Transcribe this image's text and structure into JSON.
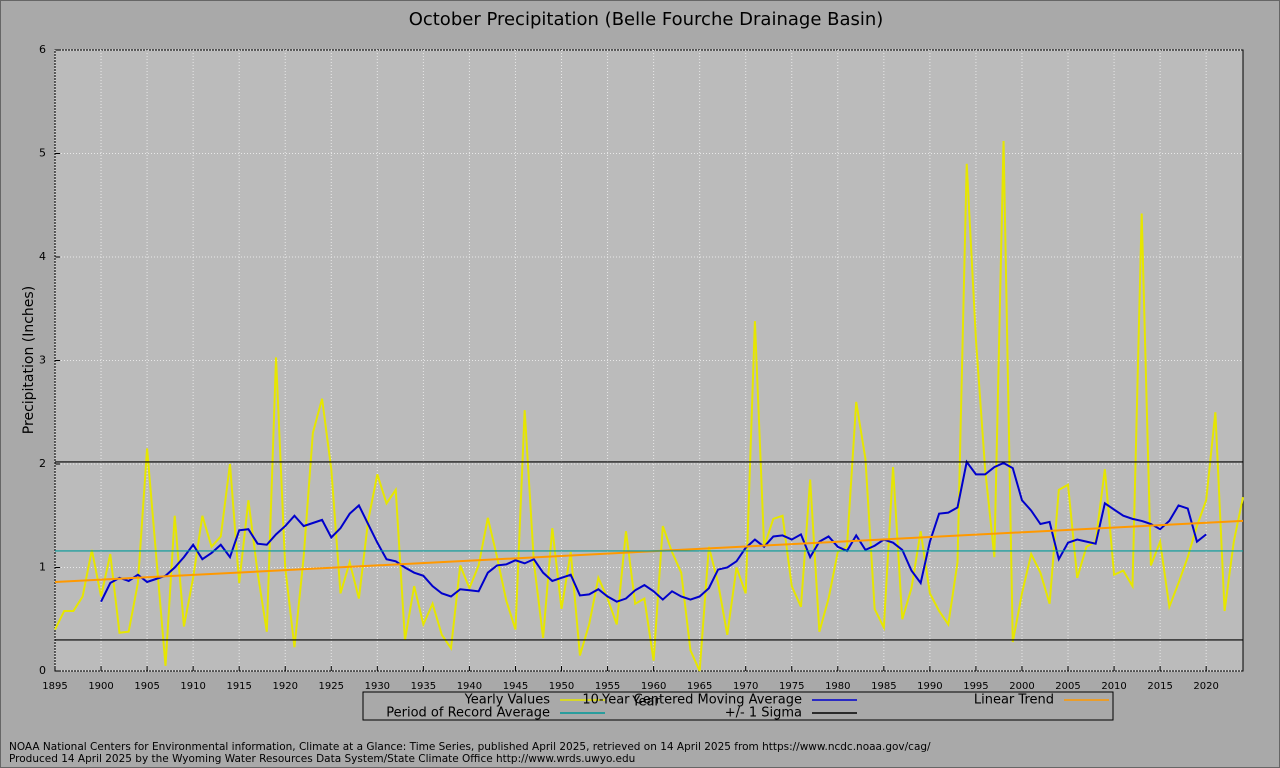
{
  "chart_data": {
    "type": "line",
    "title": "October Precipitation (Belle Fourche Drainage Basin)",
    "x_label": "Year",
    "y_label": "Precipitation (Inches)",
    "x": [
      1895,
      1896,
      1897,
      1898,
      1899,
      1900,
      1901,
      1902,
      1903,
      1904,
      1905,
      1906,
      1907,
      1908,
      1909,
      1910,
      1911,
      1912,
      1913,
      1914,
      1915,
      1916,
      1917,
      1918,
      1919,
      1920,
      1921,
      1922,
      1923,
      1924,
      1925,
      1926,
      1927,
      1928,
      1929,
      1930,
      1931,
      1932,
      1933,
      1934,
      1935,
      1936,
      1937,
      1938,
      1939,
      1940,
      1941,
      1942,
      1943,
      1944,
      1945,
      1946,
      1947,
      1948,
      1949,
      1950,
      1951,
      1952,
      1953,
      1954,
      1955,
      1956,
      1957,
      1958,
      1959,
      1960,
      1961,
      1962,
      1963,
      1964,
      1965,
      1966,
      1967,
      1968,
      1969,
      1970,
      1971,
      1972,
      1973,
      1974,
      1975,
      1976,
      1977,
      1978,
      1979,
      1980,
      1981,
      1982,
      1983,
      1984,
      1985,
      1986,
      1987,
      1988,
      1989,
      1990,
      1991,
      1992,
      1993,
      1994,
      1995,
      1996,
      1997,
      1998,
      1999,
      2000,
      2001,
      2002,
      2003,
      2004,
      2005,
      2006,
      2007,
      2008,
      2009,
      2010,
      2011,
      2012,
      2013,
      2014,
      2015,
      2016,
      2017,
      2018,
      2019,
      2020,
      2021,
      2022,
      2023,
      2024
    ],
    "series": [
      {
        "name": "Yearly Values",
        "color": "#e6e600",
        "values": [
          0.4,
          0.58,
          0.58,
          0.72,
          1.17,
          0.72,
          1.13,
          0.37,
          0.38,
          0.85,
          2.15,
          1.1,
          0.05,
          1.5,
          0.43,
          0.9,
          1.5,
          1.2,
          1.3,
          2.0,
          0.85,
          1.65,
          0.95,
          0.38,
          3.03,
          1.0,
          0.23,
          1.1,
          2.3,
          2.63,
          1.95,
          0.75,
          1.05,
          0.7,
          1.45,
          1.9,
          1.62,
          1.75,
          0.3,
          0.82,
          0.45,
          0.65,
          0.35,
          0.22,
          1.02,
          0.8,
          1.02,
          1.48,
          1.1,
          0.68,
          0.4,
          2.52,
          1.05,
          0.32,
          1.38,
          0.6,
          1.15,
          0.15,
          0.45,
          0.9,
          0.7,
          0.45,
          1.35,
          0.65,
          0.7,
          0.1,
          1.4,
          1.15,
          0.95,
          0.2,
          0.0,
          1.2,
          0.85,
          0.35,
          1.0,
          0.75,
          3.38,
          1.2,
          1.47,
          1.5,
          0.82,
          0.62,
          1.85,
          0.38,
          0.7,
          1.15,
          1.2,
          2.6,
          2.05,
          0.6,
          0.42,
          1.97,
          0.5,
          0.8,
          1.35,
          0.75,
          0.58,
          0.45,
          1.05,
          4.9,
          3.2,
          1.95,
          1.1,
          5.12,
          0.28,
          0.75,
          1.13,
          0.95,
          0.65,
          1.75,
          1.8,
          0.9,
          1.2,
          1.25,
          1.95,
          0.93,
          0.97,
          0.82,
          4.42,
          1.02,
          1.25,
          0.62,
          0.85,
          1.1,
          1.4,
          1.65,
          2.5,
          0.58,
          1.25,
          1.68
        ]
      },
      {
        "name": "10-Year Centered Moving Average",
        "color": "#0000cc",
        "values": [
          null,
          null,
          null,
          null,
          null,
          0.67,
          0.85,
          0.9,
          0.87,
          0.93,
          0.86,
          0.89,
          0.92,
          1.0,
          1.1,
          1.22,
          1.08,
          1.14,
          1.22,
          1.1,
          1.36,
          1.37,
          1.23,
          1.22,
          1.32,
          1.4,
          1.5,
          1.4,
          1.43,
          1.46,
          1.29,
          1.38,
          1.52,
          1.6,
          1.42,
          1.24,
          1.08,
          1.06,
          1.0,
          0.95,
          0.92,
          0.82,
          0.75,
          0.72,
          0.79,
          0.78,
          0.77,
          0.95,
          1.02,
          1.03,
          1.07,
          1.04,
          1.08,
          0.95,
          0.87,
          0.9,
          0.93,
          0.73,
          0.74,
          0.79,
          0.72,
          0.67,
          0.7,
          0.78,
          0.83,
          0.77,
          0.69,
          0.77,
          0.72,
          0.69,
          0.72,
          0.8,
          0.98,
          1.0,
          1.06,
          1.19,
          1.27,
          1.2,
          1.3,
          1.31,
          1.27,
          1.32,
          1.1,
          1.25,
          1.3,
          1.2,
          1.16,
          1.31,
          1.17,
          1.21,
          1.27,
          1.24,
          1.17,
          0.97,
          0.85,
          1.25,
          1.52,
          1.53,
          1.58,
          2.02,
          1.9,
          1.9,
          1.97,
          2.01,
          1.96,
          1.65,
          1.55,
          1.42,
          1.44,
          1.08,
          1.24,
          1.27,
          1.25,
          1.23,
          1.62,
          1.56,
          1.5,
          1.47,
          1.45,
          1.42,
          1.37,
          1.45,
          1.6,
          1.57,
          1.25,
          1.32,
          null,
          null,
          null,
          null
        ]
      },
      {
        "name": "Linear Trend",
        "color": "#ff9900",
        "x": [
          1895,
          2024
        ],
        "values": [
          0.86,
          1.45
        ]
      },
      {
        "name": "Period of Record Average",
        "color": "#009999",
        "hlines": [
          1.16
        ]
      },
      {
        "name": "+/- 1 Sigma",
        "color": "#000000",
        "hlines": [
          2.02,
          0.3
        ]
      }
    ],
    "xlim": [
      1895,
      2024
    ],
    "ylim": [
      0,
      6
    ],
    "xticks": [
      1895,
      1900,
      1905,
      1910,
      1915,
      1920,
      1925,
      1930,
      1935,
      1940,
      1945,
      1950,
      1955,
      1960,
      1965,
      1970,
      1975,
      1980,
      1985,
      1990,
      1995,
      2000,
      2005,
      2010,
      2015,
      2020
    ],
    "yticks": [
      0,
      1,
      2,
      3,
      4,
      5,
      6
    ],
    "grid": true,
    "notes": [
      "NOAA National Centers for Environmental information, Climate at a Glance: Time Series, published April 2025, retrieved on 14 April 2025 from https://www.ncdc.noaa.gov/cag/",
      "Produced 14 April 2025 by the Wyoming Water Resources Data System/State Climate Office http://www.wrds.uwyo.edu"
    ]
  }
}
